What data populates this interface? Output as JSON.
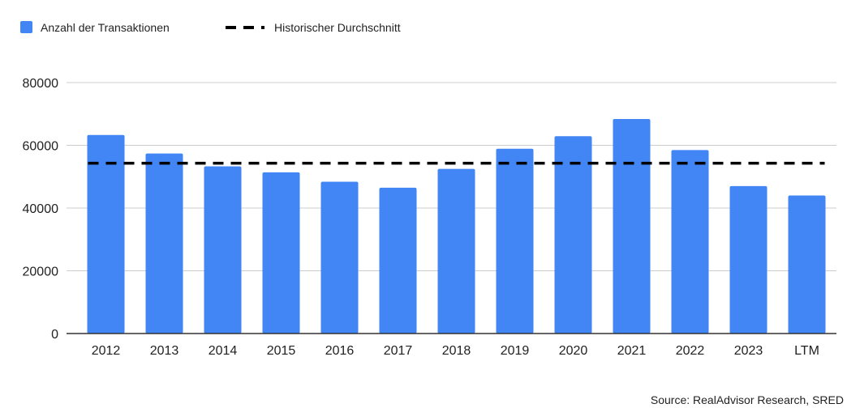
{
  "chart_data": {
    "type": "bar",
    "categories": [
      "2012",
      "2013",
      "2014",
      "2015",
      "2016",
      "2017",
      "2018",
      "2019",
      "2020",
      "2021",
      "2022",
      "2023",
      "LTM"
    ],
    "series": [
      {
        "name": "Anzahl der Transaktionen",
        "values": [
          63300,
          57400,
          53300,
          51400,
          48400,
          46500,
          52500,
          58900,
          62900,
          68400,
          58500,
          47000,
          44000
        ],
        "color": "#4285f4"
      }
    ],
    "reference_line": {
      "name": "Historischer Durchschnitt",
      "value": 54300,
      "color": "#000000",
      "style": "dashed"
    },
    "ylim": [
      0,
      80000
    ],
    "yticks": [
      0,
      20000,
      40000,
      60000,
      80000
    ],
    "grid": true,
    "legend_position": "top-left",
    "source": "Source: RealAdvisor Research, SRED"
  }
}
